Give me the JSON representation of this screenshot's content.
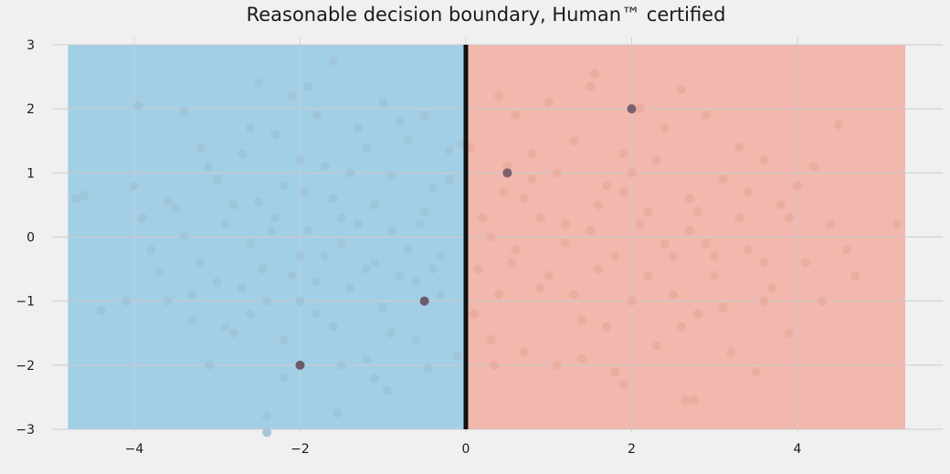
{
  "chart_data": {
    "type": "scatter",
    "title": "Reasonable decision boundary, Human™ certified",
    "xlabel": "",
    "ylabel": "",
    "xlim": [
      -4.8,
      5.3
    ],
    "ylim": [
      -3,
      3
    ],
    "x_ticks": [
      -4,
      -2,
      0,
      2,
      4
    ],
    "y_ticks": [
      -3,
      -2,
      -1,
      0,
      1,
      2,
      3
    ],
    "x_tick_labels": [
      "−4",
      "−2",
      "0",
      "2",
      "4"
    ],
    "y_tick_labels": [
      "−3",
      "−2",
      "−1",
      "0",
      "1",
      "2",
      "3"
    ],
    "grid": true,
    "decision_boundary_x": 0,
    "regions": [
      {
        "class": "negative",
        "x_range": [
          -4.8,
          0
        ],
        "color": "#a3cfe6"
      },
      {
        "class": "positive",
        "x_range": [
          0,
          5.3
        ],
        "color": "#f2b7ad"
      }
    ],
    "series": [
      {
        "class": "negative",
        "color": "#9ec3d6",
        "points": [
          [
            -4.7,
            0.6
          ],
          [
            -4.6,
            0.65
          ],
          [
            -4.4,
            -1.15
          ],
          [
            -4.1,
            -1.0
          ],
          [
            -4.0,
            0.8
          ],
          [
            -3.95,
            2.05
          ],
          [
            -3.9,
            0.3
          ],
          [
            -3.7,
            -0.55
          ],
          [
            -3.6,
            -1.0
          ],
          [
            -3.5,
            0.45
          ],
          [
            -3.4,
            1.95
          ],
          [
            -3.3,
            -0.9
          ],
          [
            -3.2,
            1.4
          ],
          [
            -3.1,
            -2.0
          ],
          [
            -3.0,
            0.9
          ],
          [
            -2.9,
            -1.4
          ],
          [
            -2.8,
            0.5
          ],
          [
            -2.7,
            1.3
          ],
          [
            -2.6,
            -1.2
          ],
          [
            -2.5,
            2.4
          ],
          [
            -2.45,
            -0.5
          ],
          [
            -2.4,
            -2.8
          ],
          [
            -2.35,
            0.1
          ],
          [
            -2.3,
            1.6
          ],
          [
            -2.2,
            -1.6
          ],
          [
            -2.1,
            2.2
          ],
          [
            -2.0,
            -0.3
          ],
          [
            -1.95,
            0.7
          ],
          [
            -1.9,
            2.35
          ],
          [
            -1.8,
            -1.2
          ],
          [
            -1.7,
            1.1
          ],
          [
            -1.6,
            2.75
          ],
          [
            -1.55,
            -2.75
          ],
          [
            -1.5,
            0.3
          ],
          [
            -1.4,
            -0.8
          ],
          [
            -1.3,
            1.7
          ],
          [
            -1.2,
            -1.9
          ],
          [
            -1.1,
            0.5
          ],
          [
            -1.0,
            2.1
          ],
          [
            -0.95,
            -2.4
          ],
          [
            -0.9,
            0.95
          ],
          [
            -0.8,
            -0.6
          ],
          [
            -0.7,
            1.5
          ],
          [
            -0.6,
            -1.6
          ],
          [
            -0.55,
            0.2
          ],
          [
            -0.5,
            1.9
          ],
          [
            -0.45,
            -2.05
          ],
          [
            -0.4,
            0.75
          ],
          [
            -0.3,
            -0.9
          ],
          [
            -0.2,
            1.35
          ],
          [
            -0.1,
            -1.85
          ],
          [
            -0.05,
            1.45
          ],
          [
            -3.8,
            -0.2
          ],
          [
            -3.2,
            -0.4
          ],
          [
            -2.9,
            0.2
          ],
          [
            -2.6,
            -0.1
          ],
          [
            -2.3,
            0.3
          ],
          [
            -2.1,
            -0.6
          ],
          [
            -1.9,
            0.1
          ],
          [
            -1.7,
            -0.3
          ],
          [
            -1.5,
            -0.1
          ],
          [
            -1.3,
            0.2
          ],
          [
            -1.1,
            -0.4
          ],
          [
            -0.9,
            0.1
          ],
          [
            -0.7,
            -0.2
          ],
          [
            -0.5,
            0.4
          ],
          [
            -0.3,
            -0.3
          ],
          [
            -2.7,
            -0.8
          ],
          [
            -2.4,
            -1.0
          ],
          [
            -1.8,
            -0.7
          ],
          [
            -1.2,
            -0.5
          ],
          [
            -1.6,
            0.6
          ],
          [
            -2.2,
            0.8
          ],
          [
            -3.0,
            -0.7
          ],
          [
            -1.0,
            -1.1
          ],
          [
            -0.6,
            -0.7
          ],
          [
            -2.5,
            0.55
          ],
          [
            -2.0,
            1.2
          ],
          [
            -1.4,
            1.0
          ],
          [
            -3.4,
            0.0
          ],
          [
            -2.8,
            -1.5
          ],
          [
            -2.2,
            -2.2
          ],
          [
            -1.6,
            -1.4
          ],
          [
            -1.2,
            1.4
          ],
          [
            -0.8,
            1.8
          ],
          [
            -3.6,
            0.55
          ],
          [
            -3.1,
            1.1
          ],
          [
            -2.0,
            -1.0
          ],
          [
            -1.5,
            -2.0
          ],
          [
            -0.9,
            -1.5
          ],
          [
            -0.4,
            -0.5
          ],
          [
            -0.2,
            0.9
          ],
          [
            -2.6,
            1.7
          ],
          [
            -1.8,
            1.9
          ],
          [
            -1.1,
            -2.2
          ],
          [
            -3.3,
            -1.3
          ],
          [
            -2.4,
            -3.05
          ]
        ]
      },
      {
        "class": "positive",
        "color": "#e8ad9f",
        "points": [
          [
            0.05,
            1.4
          ],
          [
            0.1,
            -1.2
          ],
          [
            0.2,
            0.3
          ],
          [
            0.3,
            -1.6
          ],
          [
            0.4,
            2.2
          ],
          [
            0.45,
            0.7
          ],
          [
            0.55,
            -0.4
          ],
          [
            0.6,
            1.9
          ],
          [
            0.7,
            -1.8
          ],
          [
            0.8,
            0.9
          ],
          [
            0.9,
            -0.8
          ],
          [
            1.0,
            2.1
          ],
          [
            1.1,
            -2.0
          ],
          [
            1.2,
            0.2
          ],
          [
            1.3,
            1.5
          ],
          [
            1.4,
            -1.3
          ],
          [
            1.5,
            2.35
          ],
          [
            1.6,
            -0.5
          ],
          [
            1.7,
            0.8
          ],
          [
            1.8,
            -2.1
          ],
          [
            1.9,
            1.3
          ],
          [
            2.0,
            -1.0
          ],
          [
            2.1,
            2.0
          ],
          [
            2.2,
            0.4
          ],
          [
            2.3,
            -1.7
          ],
          [
            2.4,
            1.7
          ],
          [
            2.5,
            -0.3
          ],
          [
            2.6,
            2.3
          ],
          [
            2.65,
            -2.55
          ],
          [
            2.7,
            0.6
          ],
          [
            2.8,
            -1.2
          ],
          [
            2.9,
            1.9
          ],
          [
            3.0,
            -0.6
          ],
          [
            3.1,
            0.9
          ],
          [
            3.2,
            -1.8
          ],
          [
            3.3,
            1.4
          ],
          [
            3.4,
            -0.2
          ],
          [
            3.5,
            -2.1
          ],
          [
            3.6,
            1.2
          ],
          [
            3.7,
            -0.8
          ],
          [
            3.8,
            0.5
          ],
          [
            3.9,
            -1.5
          ],
          [
            4.0,
            0.8
          ],
          [
            4.1,
            -0.4
          ],
          [
            4.2,
            1.1
          ],
          [
            4.3,
            -1.0
          ],
          [
            4.4,
            0.2
          ],
          [
            4.5,
            1.75
          ],
          [
            4.6,
            -0.2
          ],
          [
            4.7,
            -0.6
          ],
          [
            5.2,
            0.2
          ],
          [
            0.3,
            0.0
          ],
          [
            0.6,
            -0.2
          ],
          [
            0.9,
            0.3
          ],
          [
            1.2,
            -0.1
          ],
          [
            1.5,
            0.1
          ],
          [
            1.8,
            -0.3
          ],
          [
            2.1,
            0.2
          ],
          [
            2.4,
            -0.1
          ],
          [
            2.7,
            0.1
          ],
          [
            3.0,
            -0.3
          ],
          [
            3.3,
            0.3
          ],
          [
            0.7,
            0.6
          ],
          [
            1.0,
            -0.6
          ],
          [
            1.3,
            -0.9
          ],
          [
            1.6,
            0.5
          ],
          [
            1.9,
            0.7
          ],
          [
            2.2,
            -0.6
          ],
          [
            2.5,
            -0.9
          ],
          [
            2.8,
            0.4
          ],
          [
            3.1,
            -1.1
          ],
          [
            3.4,
            0.7
          ],
          [
            0.8,
            1.3
          ],
          [
            1.1,
            1.0
          ],
          [
            1.4,
            -1.9
          ],
          [
            1.7,
            -1.4
          ],
          [
            2.0,
            1.0
          ],
          [
            2.3,
            1.2
          ],
          [
            2.6,
            -1.4
          ],
          [
            2.9,
            -0.1
          ],
          [
            3.6,
            -0.4
          ],
          [
            3.9,
            0.3
          ],
          [
            0.4,
            -0.9
          ],
          [
            0.5,
            1.1
          ],
          [
            1.9,
            -2.3
          ],
          [
            2.75,
            -2.55
          ],
          [
            0.15,
            -0.5
          ],
          [
            0.35,
            -2.0
          ],
          [
            1.55,
            2.55
          ],
          [
            3.6,
            -1.0
          ]
        ]
      }
    ],
    "highlighted_points": [
      {
        "x": -2,
        "y": -2,
        "color": "#6b5b6b"
      },
      {
        "x": -0.5,
        "y": -1,
        "color": "#6b5b6b"
      },
      {
        "x": 0.5,
        "y": 1,
        "color": "#7b6070"
      },
      {
        "x": 2,
        "y": 2,
        "color": "#7b6070"
      }
    ]
  }
}
